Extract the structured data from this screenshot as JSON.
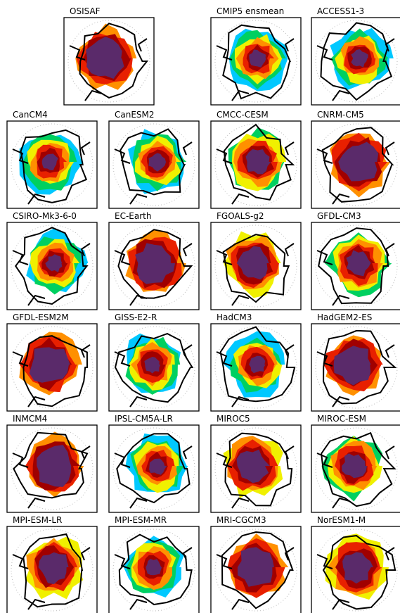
{
  "panels": [
    {
      "title": "OSISAF"
    },
    {
      "title": "CMIP5 ensmean"
    },
    {
      "title": "ACCESS1-3"
    },
    {
      "title": "CanCM4"
    },
    {
      "title": "CanESM2"
    },
    {
      "title": "CMCC-CESM"
    },
    {
      "title": "CNRM-CM5"
    },
    {
      "title": "CSIRO-Mk3-6-0"
    },
    {
      "title": "EC-Earth"
    },
    {
      "title": "FGOALS-g2"
    },
    {
      "title": "GFDL-CM3"
    },
    {
      "title": "GFDL-ESM2M"
    },
    {
      "title": "GISS-E2-R"
    },
    {
      "title": "HadCM3"
    },
    {
      "title": "HadGEM2-ES"
    },
    {
      "title": "INMCM4"
    },
    {
      "title": "IPSL-CM5A-LR"
    },
    {
      "title": "MIROC5"
    },
    {
      "title": "MIROC-ESM"
    },
    {
      "title": "MPI-ESM-LR"
    },
    {
      "title": "MPI-ESM-MR"
    },
    {
      "title": "MRI-CGCM3"
    },
    {
      "title": "NorESM1-M"
    }
  ]
}
